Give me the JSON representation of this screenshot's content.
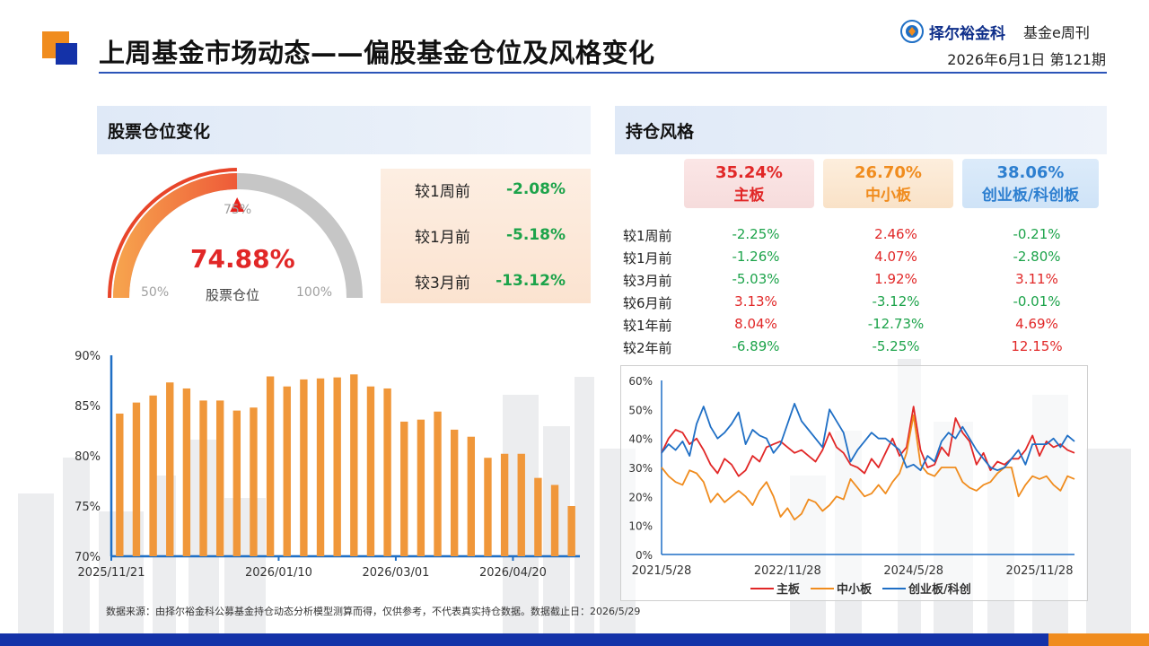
{
  "header": {
    "title": "上周基金市场动态——偏股基金仓位及风格变化",
    "brand": "择尔裕金科",
    "publication": "基金e周刊",
    "date_issue": "2026年6月1日  第121期"
  },
  "left_section": {
    "title": "股票仓位变化",
    "gauge": {
      "value": 74.88,
      "value_text": "74.88%",
      "label": "股票仓位",
      "tick_50": "50%",
      "tick_75": "75%",
      "tick_100": "100%",
      "min": 50,
      "max": 100
    },
    "changes": [
      {
        "label": "较1周前",
        "value": "-2.08%"
      },
      {
        "label": "较1月前",
        "value": "-5.18%"
      },
      {
        "label": "较3月前",
        "value": "-13.12%"
      }
    ]
  },
  "right_section": {
    "title": "持仓风格",
    "styles": [
      {
        "pct": "35.24%",
        "name": "主板",
        "color": "#e12727"
      },
      {
        "pct": "26.70%",
        "name": "中小板",
        "color": "#f08c1e"
      },
      {
        "pct": "38.06%",
        "name": "创业板/科创板",
        "color": "#2d7fd0"
      }
    ],
    "table": [
      {
        "label": "较1周前",
        "values": [
          "-2.25%",
          "2.46%",
          "-0.21%"
        ]
      },
      {
        "label": "较1月前",
        "values": [
          "-1.26%",
          "4.07%",
          "-2.80%"
        ]
      },
      {
        "label": "较3月前",
        "values": [
          "-5.03%",
          "1.92%",
          "3.11%"
        ]
      },
      {
        "label": "较6月前",
        "values": [
          "3.13%",
          "-3.12%",
          "-0.01%"
        ]
      },
      {
        "label": "较1年前",
        "values": [
          "8.04%",
          "-12.73%",
          "4.69%"
        ]
      },
      {
        "label": "较2年前",
        "values": [
          "-6.89%",
          "-5.25%",
          "12.15%"
        ]
      }
    ]
  },
  "chart_data": [
    {
      "type": "bar",
      "title": "",
      "ylim": [
        70,
        90
      ],
      "yticks": [
        "70%",
        "75%",
        "80%",
        "85%",
        "90%"
      ],
      "xtick_labels": [
        "2025/11/21",
        "2026/01/10",
        "2026/03/01",
        "2026/04/20"
      ],
      "xtick_index": [
        0,
        10,
        17,
        24
      ],
      "values": [
        84.2,
        85.3,
        86.0,
        87.3,
        86.7,
        85.5,
        85.5,
        84.5,
        84.8,
        87.9,
        86.9,
        87.6,
        87.7,
        87.8,
        88.1,
        86.9,
        86.7,
        83.4,
        83.6,
        84.4,
        82.6,
        81.9,
        79.8,
        80.2,
        80.2,
        77.8,
        77.1,
        75.0
      ],
      "bar_color": "#f0973a"
    },
    {
      "type": "line",
      "title": "",
      "ylim": [
        0,
        60
      ],
      "yticks": [
        "0%",
        "10%",
        "20%",
        "30%",
        "40%",
        "50%",
        "60%"
      ],
      "xtick_labels": [
        "2021/5/28",
        "2022/11/28",
        "2024/5/28",
        "2025/11/28"
      ],
      "xtick_index": [
        0,
        18,
        36,
        54
      ],
      "legend": [
        "主板",
        "中小板",
        "创业板/科创"
      ],
      "legend_position": "bottom",
      "series": [
        {
          "name": "主板",
          "color": "#e12727",
          "values": [
            35,
            40,
            43,
            42,
            38,
            40,
            36,
            31,
            28,
            33,
            31,
            27,
            29,
            34,
            32,
            37,
            38,
            39,
            37,
            35,
            36,
            34,
            32,
            36,
            42,
            37,
            35,
            31,
            30,
            28,
            33,
            30,
            35,
            40,
            34,
            37,
            51,
            36,
            30,
            31,
            37,
            34,
            47,
            42,
            39,
            31,
            35,
            29,
            32,
            31,
            33,
            33,
            36,
            41,
            34,
            39,
            37,
            38,
            36,
            35
          ]
        },
        {
          "name": "中小板",
          "color": "#f08c1e",
          "values": [
            30,
            27,
            25,
            24,
            29,
            28,
            25,
            18,
            21,
            18,
            20,
            22,
            20,
            17,
            22,
            25,
            20,
            13,
            16,
            12,
            14,
            19,
            18,
            15,
            17,
            20,
            19,
            26,
            23,
            20,
            21,
            24,
            21,
            25,
            28,
            35,
            48,
            31,
            28,
            27,
            30,
            30,
            30,
            25,
            23,
            22,
            24,
            25,
            28,
            30,
            30,
            20,
            24,
            27,
            26,
            27,
            24,
            22,
            27,
            26
          ]
        },
        {
          "name": "创业板/科创",
          "color": "#1f6fc5",
          "values": [
            35,
            38,
            36,
            39,
            34,
            45,
            51,
            44,
            40,
            42,
            45,
            49,
            38,
            43,
            41,
            40,
            35,
            38,
            45,
            52,
            46,
            43,
            40,
            37,
            50,
            46,
            42,
            32,
            36,
            39,
            42,
            40,
            40,
            38,
            36,
            30,
            31,
            29,
            34,
            32,
            39,
            42,
            40,
            44,
            40,
            36,
            33,
            30,
            29,
            30,
            33,
            36,
            31,
            38,
            38,
            38,
            40,
            37,
            41,
            39
          ]
        }
      ]
    }
  ]
}
